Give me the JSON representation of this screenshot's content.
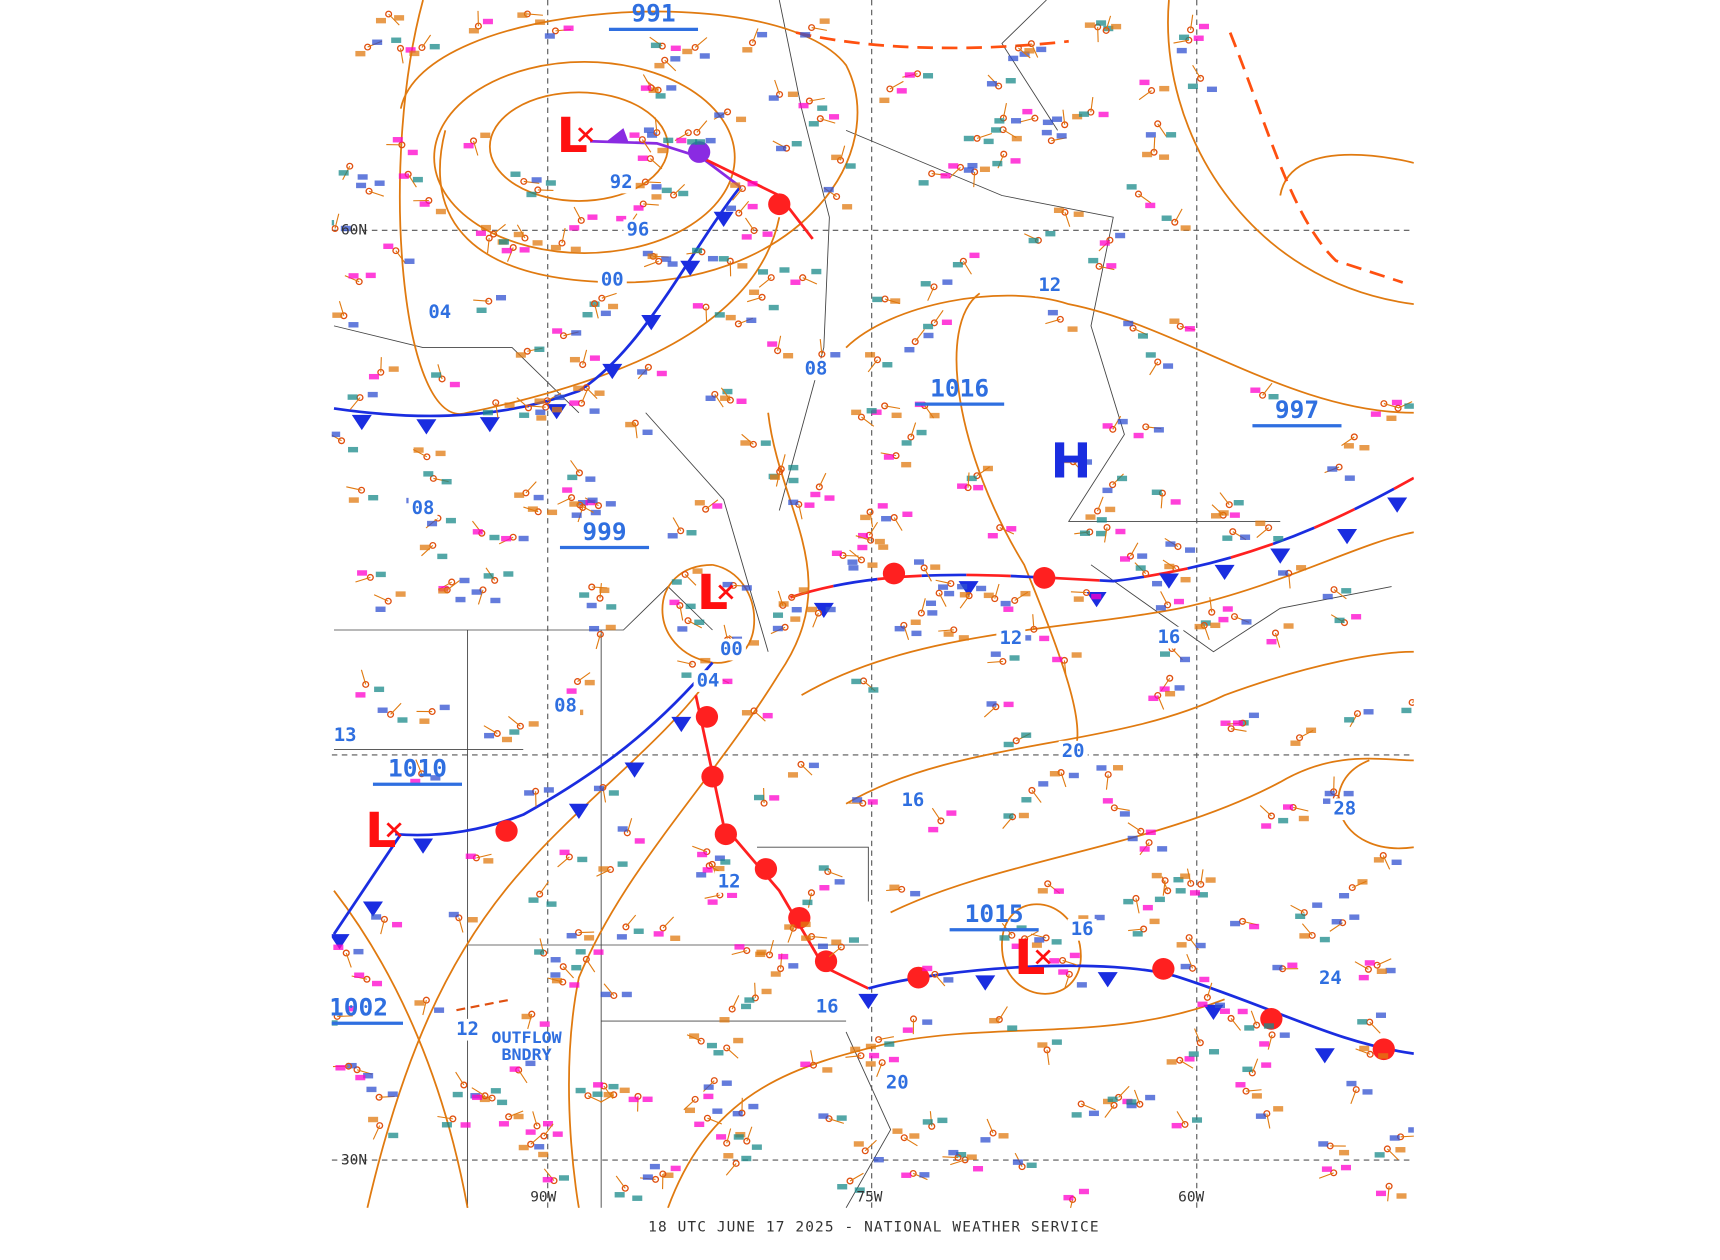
{
  "footer": "18 UTC JUNE 17 2025 - NATIONAL WEATHER SERVICE",
  "grid_labels": [
    "60N",
    "30N",
    "90W",
    "75W",
    "60W"
  ],
  "pressure_centers": [
    "L",
    "L",
    "L",
    "L",
    "H"
  ],
  "boxed_pressures": [
    "991",
    "1016",
    "997",
    "999",
    "1010",
    "1015",
    "1002"
  ],
  "isobar_labels": [
    "92",
    "96",
    "00",
    "04",
    "08",
    "08",
    "12",
    "12",
    "16",
    "00",
    "04",
    "08",
    "20",
    "16",
    "28",
    "12",
    "16",
    "24",
    "16",
    "12",
    "20",
    "13"
  ],
  "boundary_label": [
    "OUTFLOW",
    "BNDRY"
  ]
}
